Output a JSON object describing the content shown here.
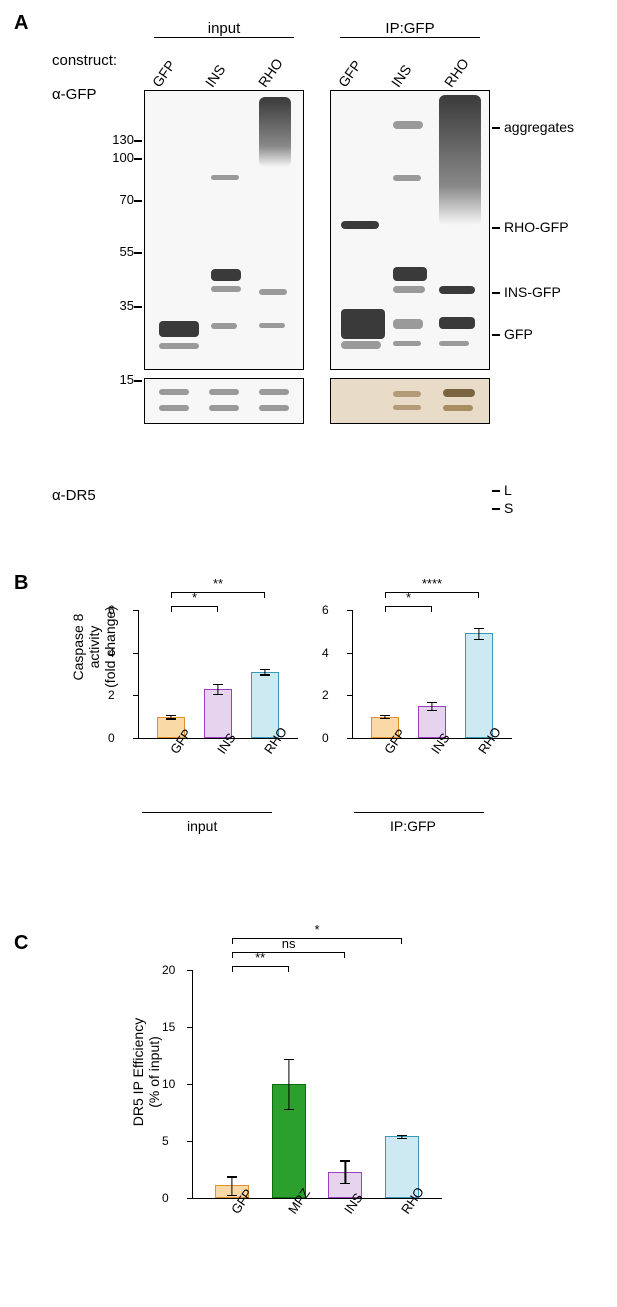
{
  "letters": {
    "A": "A",
    "B": "B",
    "C": "C"
  },
  "panelA": {
    "header_input": "input",
    "header_ip": "IP:GFP",
    "row_construct": "construct:",
    "row_gfp": "α-GFP",
    "row_dr5": "α-DR5",
    "lanes": [
      "GFP",
      "INS",
      "RHO"
    ],
    "mw": [
      "130",
      "100",
      "70",
      "55",
      "35",
      "15"
    ],
    "rlabels": [
      "aggregates",
      "RHO-GFP",
      "INS-GFP",
      "GFP",
      "L",
      "S"
    ]
  },
  "panelB": {
    "ylabel1": "Caspase 8",
    "ylabel2": "activity",
    "ylabel3": "(fold change)",
    "yticks": [
      0,
      2,
      4,
      6
    ],
    "groups": [
      "input",
      "IP:GFP"
    ],
    "cats": [
      "GFP",
      "INS",
      "RHO"
    ],
    "colors": {
      "GFP": "#f9d9a6",
      "INS": "#e6d4ef",
      "RHO": "#cdeaf2",
      "GFP_b": "#e0902c",
      "INS_b": "#9c3fc0",
      "RHO_b": "#3a99b5"
    },
    "series_input": {
      "values": [
        1.0,
        2.3,
        3.1
      ],
      "err": [
        0.08,
        0.25,
        0.12
      ],
      "sig": [
        "*",
        "**"
      ]
    },
    "series_ip": {
      "values": [
        1.0,
        1.5,
        4.9
      ],
      "err": [
        0.07,
        0.18,
        0.25
      ],
      "sig": [
        "*",
        "****"
      ]
    }
  },
  "panelC": {
    "ylabel1": "DR5 IP Efficiency",
    "ylabel2": "(% of input)",
    "yticks": [
      0,
      5,
      10,
      15,
      20
    ],
    "cats": [
      "GFP",
      "MPZ",
      "INS",
      "RHO"
    ],
    "values": [
      1.1,
      10.0,
      2.3,
      5.4
    ],
    "err": [
      0.8,
      2.2,
      1.0,
      0.15
    ],
    "colors": {
      "GFP": "#f9d9a6",
      "MPZ": "#2ca02c",
      "INS": "#e6d4ef",
      "RHO": "#cdeaf2",
      "GFP_b": "#e0902c",
      "MPZ_b": "#0f6b0f",
      "INS_b": "#9c3fc0",
      "RHO_b": "#3a99b5"
    },
    "sig": [
      "**",
      "ns",
      "*"
    ]
  }
}
